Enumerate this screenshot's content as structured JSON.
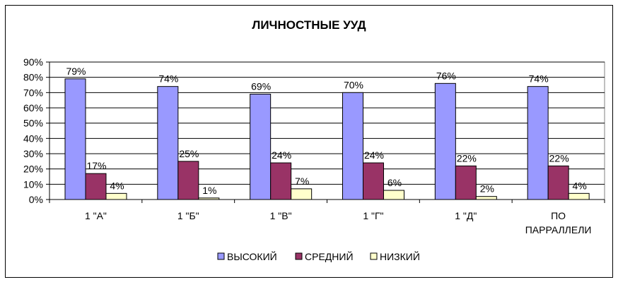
{
  "chart_data": {
    "type": "bar",
    "title": "ЛИЧНОСТНЫЕ УУД",
    "xlabel": "",
    "ylabel": "",
    "ylim": [
      0,
      90
    ],
    "yticks": [
      "0%",
      "10%",
      "20%",
      "30%",
      "40%",
      "50%",
      "60%",
      "70%",
      "80%",
      "90%"
    ],
    "categories": [
      [
        "1 \"А\""
      ],
      [
        "1 \"Б\""
      ],
      [
        "1 \"В\""
      ],
      [
        "1 \"Г\""
      ],
      [
        "1 \"Д\""
      ],
      [
        "ПО",
        "ПАРРАЛЛЕЛИ"
      ]
    ],
    "series": [
      {
        "name": "ВЫСОКИЙ",
        "color": "#9999ff",
        "values": [
          79,
          74,
          69,
          70,
          76,
          74
        ],
        "labels": [
          "79%",
          "74%",
          "69%",
          "70%",
          "76%",
          "74%"
        ]
      },
      {
        "name": "СРЕДНИЙ",
        "color": "#993366",
        "values": [
          17,
          25,
          24,
          24,
          22,
          22
        ],
        "labels": [
          "17%",
          "25%",
          "24%",
          "24%",
          "22%",
          "22%"
        ]
      },
      {
        "name": "НИЗКИЙ",
        "color": "#ffffcc",
        "values": [
          4,
          1,
          7,
          6,
          2,
          4
        ],
        "labels": [
          "4%",
          "1%",
          "7%",
          "6%",
          "2%",
          "4%"
        ]
      }
    ],
    "grid": true,
    "legend_position": "bottom"
  }
}
